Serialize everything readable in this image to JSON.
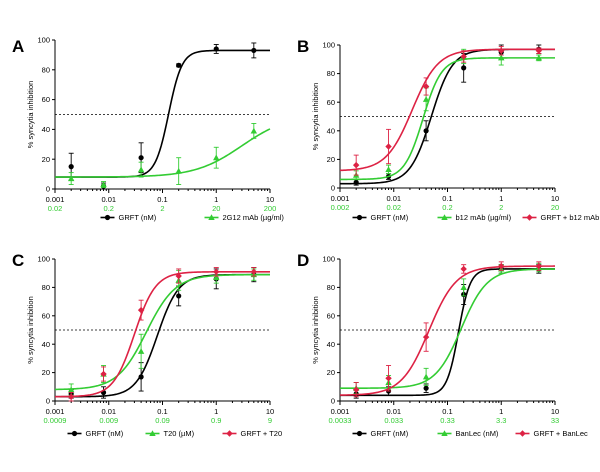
{
  "chart_data": [
    {
      "type": "line",
      "panel_label": "A",
      "ylabel": "% syncytia inhibition",
      "ylim": [
        0,
        100
      ],
      "yticks": [
        "0",
        "20",
        "40",
        "60",
        "80",
        "100"
      ],
      "xscale": "log",
      "xlim": [
        0.001,
        10
      ],
      "xticks_primary": [
        "0.001",
        "0.01",
        "0.1",
        "1",
        "10"
      ],
      "xticks_secondary": [
        "0.02",
        "0.2",
        "2",
        "20",
        "200"
      ],
      "reference_line": 50,
      "series": [
        {
          "name": "GRFT (nM)",
          "color": "#000000",
          "marker": "circle",
          "ec50": 0.13,
          "hill": 3.5,
          "top": 93,
          "bottom": 8,
          "x": [
            0.002,
            0.008,
            0.04,
            0.2,
            1,
            5
          ],
          "y": [
            15,
            2,
            21,
            83,
            94,
            93
          ],
          "err": [
            9,
            2,
            10,
            1,
            3,
            5
          ]
        },
        {
          "name": "2G12 mAb (µg/ml)",
          "color": "#33cc33",
          "marker": "triangle",
          "ec50": 3,
          "hill": 1,
          "top": 50,
          "bottom": 8,
          "x": [
            0.002,
            0.008,
            0.04,
            0.2,
            1,
            5
          ],
          "y": [
            7,
            3,
            13,
            12,
            21,
            39
          ],
          "err": [
            4,
            2,
            5,
            9,
            7,
            5
          ]
        }
      ]
    },
    {
      "type": "line",
      "panel_label": "B",
      "ylabel": "% syncytia inhibition",
      "ylim": [
        0,
        100
      ],
      "yticks": [
        "0",
        "20",
        "40",
        "60",
        "80",
        "100"
      ],
      "xscale": "log",
      "xlim": [
        0.001,
        10
      ],
      "xticks_primary": [
        "0.001",
        "0.01",
        "0.1",
        "1",
        "10"
      ],
      "xticks_secondary": [
        "0.002",
        "0.02",
        "0.2",
        "2",
        "20"
      ],
      "reference_line": 50,
      "series": [
        {
          "name": "GRFT (nM)",
          "color": "#000000",
          "marker": "circle",
          "ec50": 0.05,
          "hill": 2.2,
          "top": 97,
          "bottom": 3,
          "x": [
            0.002,
            0.008,
            0.04,
            0.2,
            1,
            5
          ],
          "y": [
            4,
            8,
            40,
            84,
            95,
            97
          ],
          "err": [
            2,
            2,
            7,
            10,
            5,
            3
          ]
        },
        {
          "name": "b12 mAb (µg/ml)",
          "color": "#33cc33",
          "marker": "triangle",
          "ec50": 0.035,
          "hill": 2.5,
          "top": 91,
          "bottom": 6,
          "x": [
            0.002,
            0.008,
            0.04,
            0.2,
            1,
            5
          ],
          "y": [
            9,
            13,
            62,
            92,
            91,
            91
          ],
          "err": [
            3,
            3,
            8,
            5,
            5,
            2
          ]
        },
        {
          "name": "GRFT + b12 mAb",
          "color": "#dd2244",
          "marker": "diamond",
          "ec50": 0.022,
          "hill": 1.8,
          "top": 97,
          "bottom": 12,
          "x": [
            0.002,
            0.008,
            0.04,
            0.2,
            1,
            5
          ],
          "y": [
            16,
            29,
            71,
            92,
            96,
            96
          ],
          "err": [
            7,
            12,
            6,
            4,
            3,
            2
          ]
        }
      ]
    },
    {
      "type": "line",
      "panel_label": "C",
      "ylabel": "% syncytia inhibition",
      "ylim": [
        0,
        100
      ],
      "yticks": [
        "0",
        "20",
        "40",
        "60",
        "80",
        "100"
      ],
      "xscale": "log",
      "xlim": [
        0.001,
        10
      ],
      "xticks_primary": [
        "0.001",
        "0.01",
        "0.1",
        "1",
        "10"
      ],
      "xticks_secondary": [
        "0.0009",
        "0.009",
        "0.09",
        "0.9",
        "9"
      ],
      "reference_line": 50,
      "series": [
        {
          "name": "GRFT (nM)",
          "color": "#000000",
          "marker": "circle",
          "ec50": 0.08,
          "hill": 2.2,
          "top": 89,
          "bottom": 3,
          "x": [
            0.002,
            0.008,
            0.04,
            0.2,
            1,
            5
          ],
          "y": [
            5,
            6,
            17,
            74,
            86,
            89
          ],
          "err": [
            3,
            4,
            10,
            7,
            7,
            5
          ]
        },
        {
          "name": "T20 (µM)",
          "color": "#33cc33",
          "marker": "triangle",
          "ec50": 0.05,
          "hill": 1.6,
          "top": 89,
          "bottom": 8,
          "x": [
            0.002,
            0.008,
            0.04,
            0.2,
            1,
            5
          ],
          "y": [
            8,
            19,
            35,
            85,
            87,
            89
          ],
          "err": [
            4,
            6,
            12,
            7,
            4,
            4
          ]
        },
        {
          "name": "GRFT + T20",
          "color": "#dd2244",
          "marker": "diamond",
          "ec50": 0.03,
          "hill": 2.2,
          "top": 91,
          "bottom": 3,
          "x": [
            0.002,
            0.008,
            0.04,
            0.2,
            1,
            5
          ],
          "y": [
            3,
            19,
            64,
            88,
            91,
            91
          ],
          "err": [
            3,
            5,
            7,
            5,
            3,
            3
          ]
        }
      ]
    },
    {
      "type": "line",
      "panel_label": "D",
      "ylabel": "% syncytia inhibition",
      "ylim": [
        0,
        100
      ],
      "yticks": [
        "0",
        "20",
        "40",
        "60",
        "80",
        "100"
      ],
      "xscale": "log",
      "xlim": [
        0.001,
        10
      ],
      "xticks_primary": [
        "0.001",
        "0.01",
        "0.1",
        "1",
        "10"
      ],
      "xticks_secondary": [
        "0.0033",
        "0.033",
        "0.33",
        "3.3",
        "33"
      ],
      "reference_line": 50,
      "series": [
        {
          "name": "GRFT (nM)",
          "color": "#000000",
          "marker": "circle",
          "ec50": 0.16,
          "hill": 4,
          "top": 93,
          "bottom": 4,
          "x": [
            0.002,
            0.008,
            0.04,
            0.2,
            1,
            5
          ],
          "y": [
            5,
            7,
            9,
            75,
            93,
            93
          ],
          "err": [
            3,
            3,
            3,
            7,
            3,
            3
          ]
        },
        {
          "name": "BanLec (nM)",
          "color": "#33cc33",
          "marker": "triangle",
          "ec50": 0.18,
          "hill": 1.8,
          "top": 93,
          "bottom": 9,
          "x": [
            0.002,
            0.008,
            0.04,
            0.2,
            1,
            5
          ],
          "y": [
            9,
            13,
            17,
            80,
            93,
            94
          ],
          "err": [
            4,
            5,
            6,
            6,
            3,
            3
          ]
        },
        {
          "name": "GRFT + BanLec",
          "color": "#dd2244",
          "marker": "diamond",
          "ec50": 0.045,
          "hill": 1.7,
          "top": 95,
          "bottom": 4,
          "x": [
            0.002,
            0.008,
            0.04,
            0.2,
            1,
            5
          ],
          "y": [
            8,
            16,
            45,
            93,
            95,
            95
          ],
          "err": [
            5,
            9,
            10,
            3,
            3,
            3
          ]
        }
      ]
    }
  ]
}
